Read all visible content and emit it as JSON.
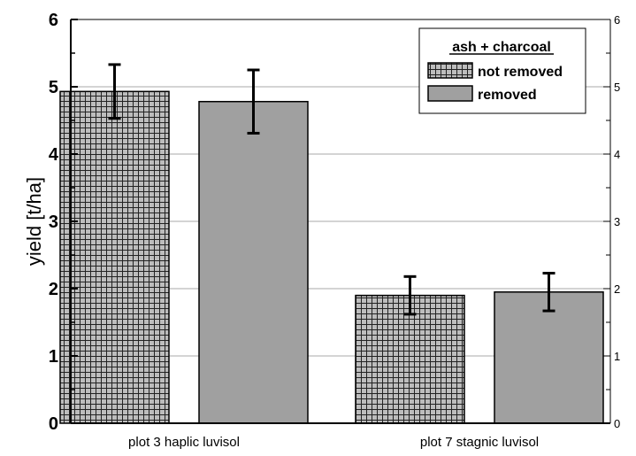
{
  "chart_data": {
    "type": "bar",
    "categories": [
      "plot 3 haplic luvisol",
      "plot 7 stagnic luvisol"
    ],
    "series": [
      {
        "name": "not removed",
        "values": [
          4.93,
          1.9
        ],
        "errors": [
          0.4,
          0.28
        ],
        "pattern": "grid-hatch"
      },
      {
        "name": "removed",
        "values": [
          4.78,
          1.95
        ],
        "errors": [
          0.47,
          0.28
        ],
        "color": "#a0a0a0"
      }
    ],
    "ylabel": "yield [t/ha]",
    "ylim": [
      0,
      6
    ],
    "yticks": [
      "0",
      "1",
      "2",
      "3",
      "4",
      "5",
      "6"
    ],
    "right_yticks": [
      "0",
      "1",
      "2",
      "3",
      "4",
      "5",
      "6"
    ],
    "grid": true,
    "legend": {
      "title": "ash + charcoal",
      "position": "top-right"
    }
  }
}
